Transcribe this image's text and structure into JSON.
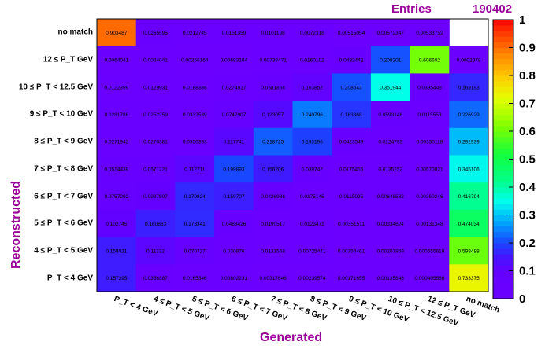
{
  "stats": {
    "label": "Entries",
    "value": "190402"
  },
  "chart_data": {
    "type": "heatmap",
    "xlabel": "Generated",
    "ylabel": "Reconstructed",
    "x_categories": [
      "P_T < 4 GeV",
      "4 ≤ P_T < 5 GeV",
      "5 ≤ P_T < 6 GeV",
      "6 ≤ P_T < 7 GeV",
      "7 ≤ P_T < 8 GeV",
      "8 ≤ P_T < 9 GeV",
      "9 ≤ P_T < 10 GeV",
      "10 ≤ P_T < 12.5 GeV",
      "12 ≤ P_T GeV",
      "no match"
    ],
    "y_categories_top_to_bottom": [
      "no match",
      "12 ≤ P_T GeV",
      "10 ≤ P_T < 12.5 GeV",
      "9 ≤ P_T < 10 GeV",
      "8 ≤ P_T < 9 GeV",
      "7 ≤ P_T < 8 GeV",
      "6 ≤ P_T < 7 GeV",
      "5 ≤ P_T < 6 GeV",
      "4 ≤ P_T < 5 GeV",
      "P_T < 4 GeV"
    ],
    "rows_top_to_bottom": [
      [
        "0.903487",
        "0.0265595",
        "0.0212745",
        "0.0151359",
        "0.0101198",
        "0.0072318",
        "0.00515054",
        "0.00572347",
        "0.00533752",
        null
      ],
      [
        "0.0064041",
        "0.0064041",
        "0.00256164",
        "0.00683104",
        "0.00738471",
        "0.0160102",
        "0.0482442",
        "0.209201",
        "0.606682",
        "0.0002978"
      ],
      [
        "0.0122399",
        "0.0129931",
        "0.0188386",
        "0.0274927",
        "0.0581866",
        "0.103852",
        "0.208643",
        "0.351944",
        "0.0395443",
        "0.169193"
      ],
      [
        "0.0281786",
        "0.0252259",
        "0.0332539",
        "0.0742907",
        "0.123057",
        "0.240796",
        "0.183368",
        "0.0593146",
        "0.0115553",
        "0.226929"
      ],
      [
        "0.0271943",
        "0.0270381",
        "0.0350393",
        "0.117741",
        "0.218725",
        "0.193196",
        "0.0423549",
        "0.0224793",
        "0.00330118",
        "0.292939"
      ],
      [
        "0.0514439",
        "0.0571221",
        "0.112711",
        "0.199893",
        "0.156206",
        "0.039747",
        "0.0175455",
        "0.0135253",
        "0.00570021",
        "0.345106"
      ],
      [
        "0.0757292",
        "0.0937807",
        "0.170824",
        "0.159707",
        "0.0426936",
        "0.0175145",
        "0.0115095",
        "0.00848532",
        "0.00360246",
        "0.416794"
      ],
      [
        "0.102745",
        "0.160863",
        "0.173341",
        "0.0488426",
        "0.0190517",
        "0.0123471",
        "0.00351511",
        "0.00334624",
        "0.00131348",
        "0.474034"
      ],
      [
        "0.158021",
        "0.11332",
        "0.070727",
        "0.030876",
        "0.0131568",
        "0.00725441",
        "0.00354461",
        "0.00207859",
        "0.000555619",
        "0.598488"
      ],
      [
        "0.157395",
        "0.0356387",
        "0.0165346",
        "0.00802231",
        "0.00317648",
        "0.00239574",
        "0.00171655",
        "0.00135848",
        "0.000405586",
        "0.733375"
      ]
    ],
    "zlim": [
      0,
      1
    ],
    "colorbar_ticks": [
      "0",
      "0.1",
      "0.2",
      "0.3",
      "0.4",
      "0.5",
      "0.6",
      "0.7",
      "0.8",
      "0.9",
      "1"
    ]
  }
}
